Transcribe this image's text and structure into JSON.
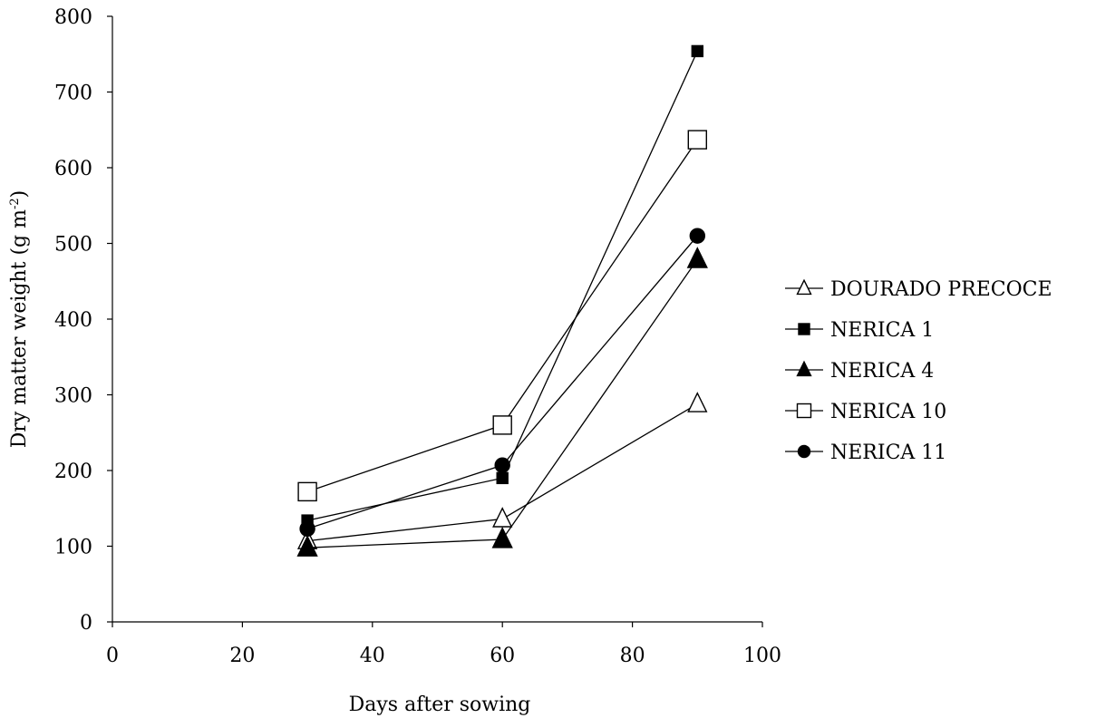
{
  "chart_data": {
    "type": "line",
    "title": "",
    "xlabel": "Days after sowing",
    "ylabel": "Dry matter weight (g m",
    "ylabel_sup": "-2",
    "ylabel_end": ")",
    "xlim": [
      0,
      100
    ],
    "ylim": [
      0,
      800
    ],
    "x_ticks": [
      0,
      20,
      40,
      60,
      80,
      100
    ],
    "y_ticks": [
      0,
      100,
      200,
      300,
      400,
      500,
      600,
      700,
      800
    ],
    "grid": false,
    "legend_position": "right",
    "series": [
      {
        "name": "DOURADO PRECOCE",
        "marker": "open-triangle",
        "x": [
          30,
          60,
          90
        ],
        "y": [
          107,
          136,
          288
        ]
      },
      {
        "name": "NERICA 1",
        "marker": "filled-square",
        "x": [
          30,
          60,
          90
        ],
        "y": [
          134,
          190,
          754
        ]
      },
      {
        "name": "NERICA 4",
        "marker": "filled-triangle",
        "x": [
          30,
          60,
          90
        ],
        "y": [
          98,
          109,
          479
        ]
      },
      {
        "name": "NERICA 10",
        "marker": "open-square",
        "x": [
          30,
          60,
          90
        ],
        "y": [
          172,
          260,
          637
        ]
      },
      {
        "name": "NERICA 11",
        "marker": "filled-circle",
        "x": [
          30,
          60,
          90
        ],
        "y": [
          123,
          207,
          510
        ]
      }
    ]
  }
}
